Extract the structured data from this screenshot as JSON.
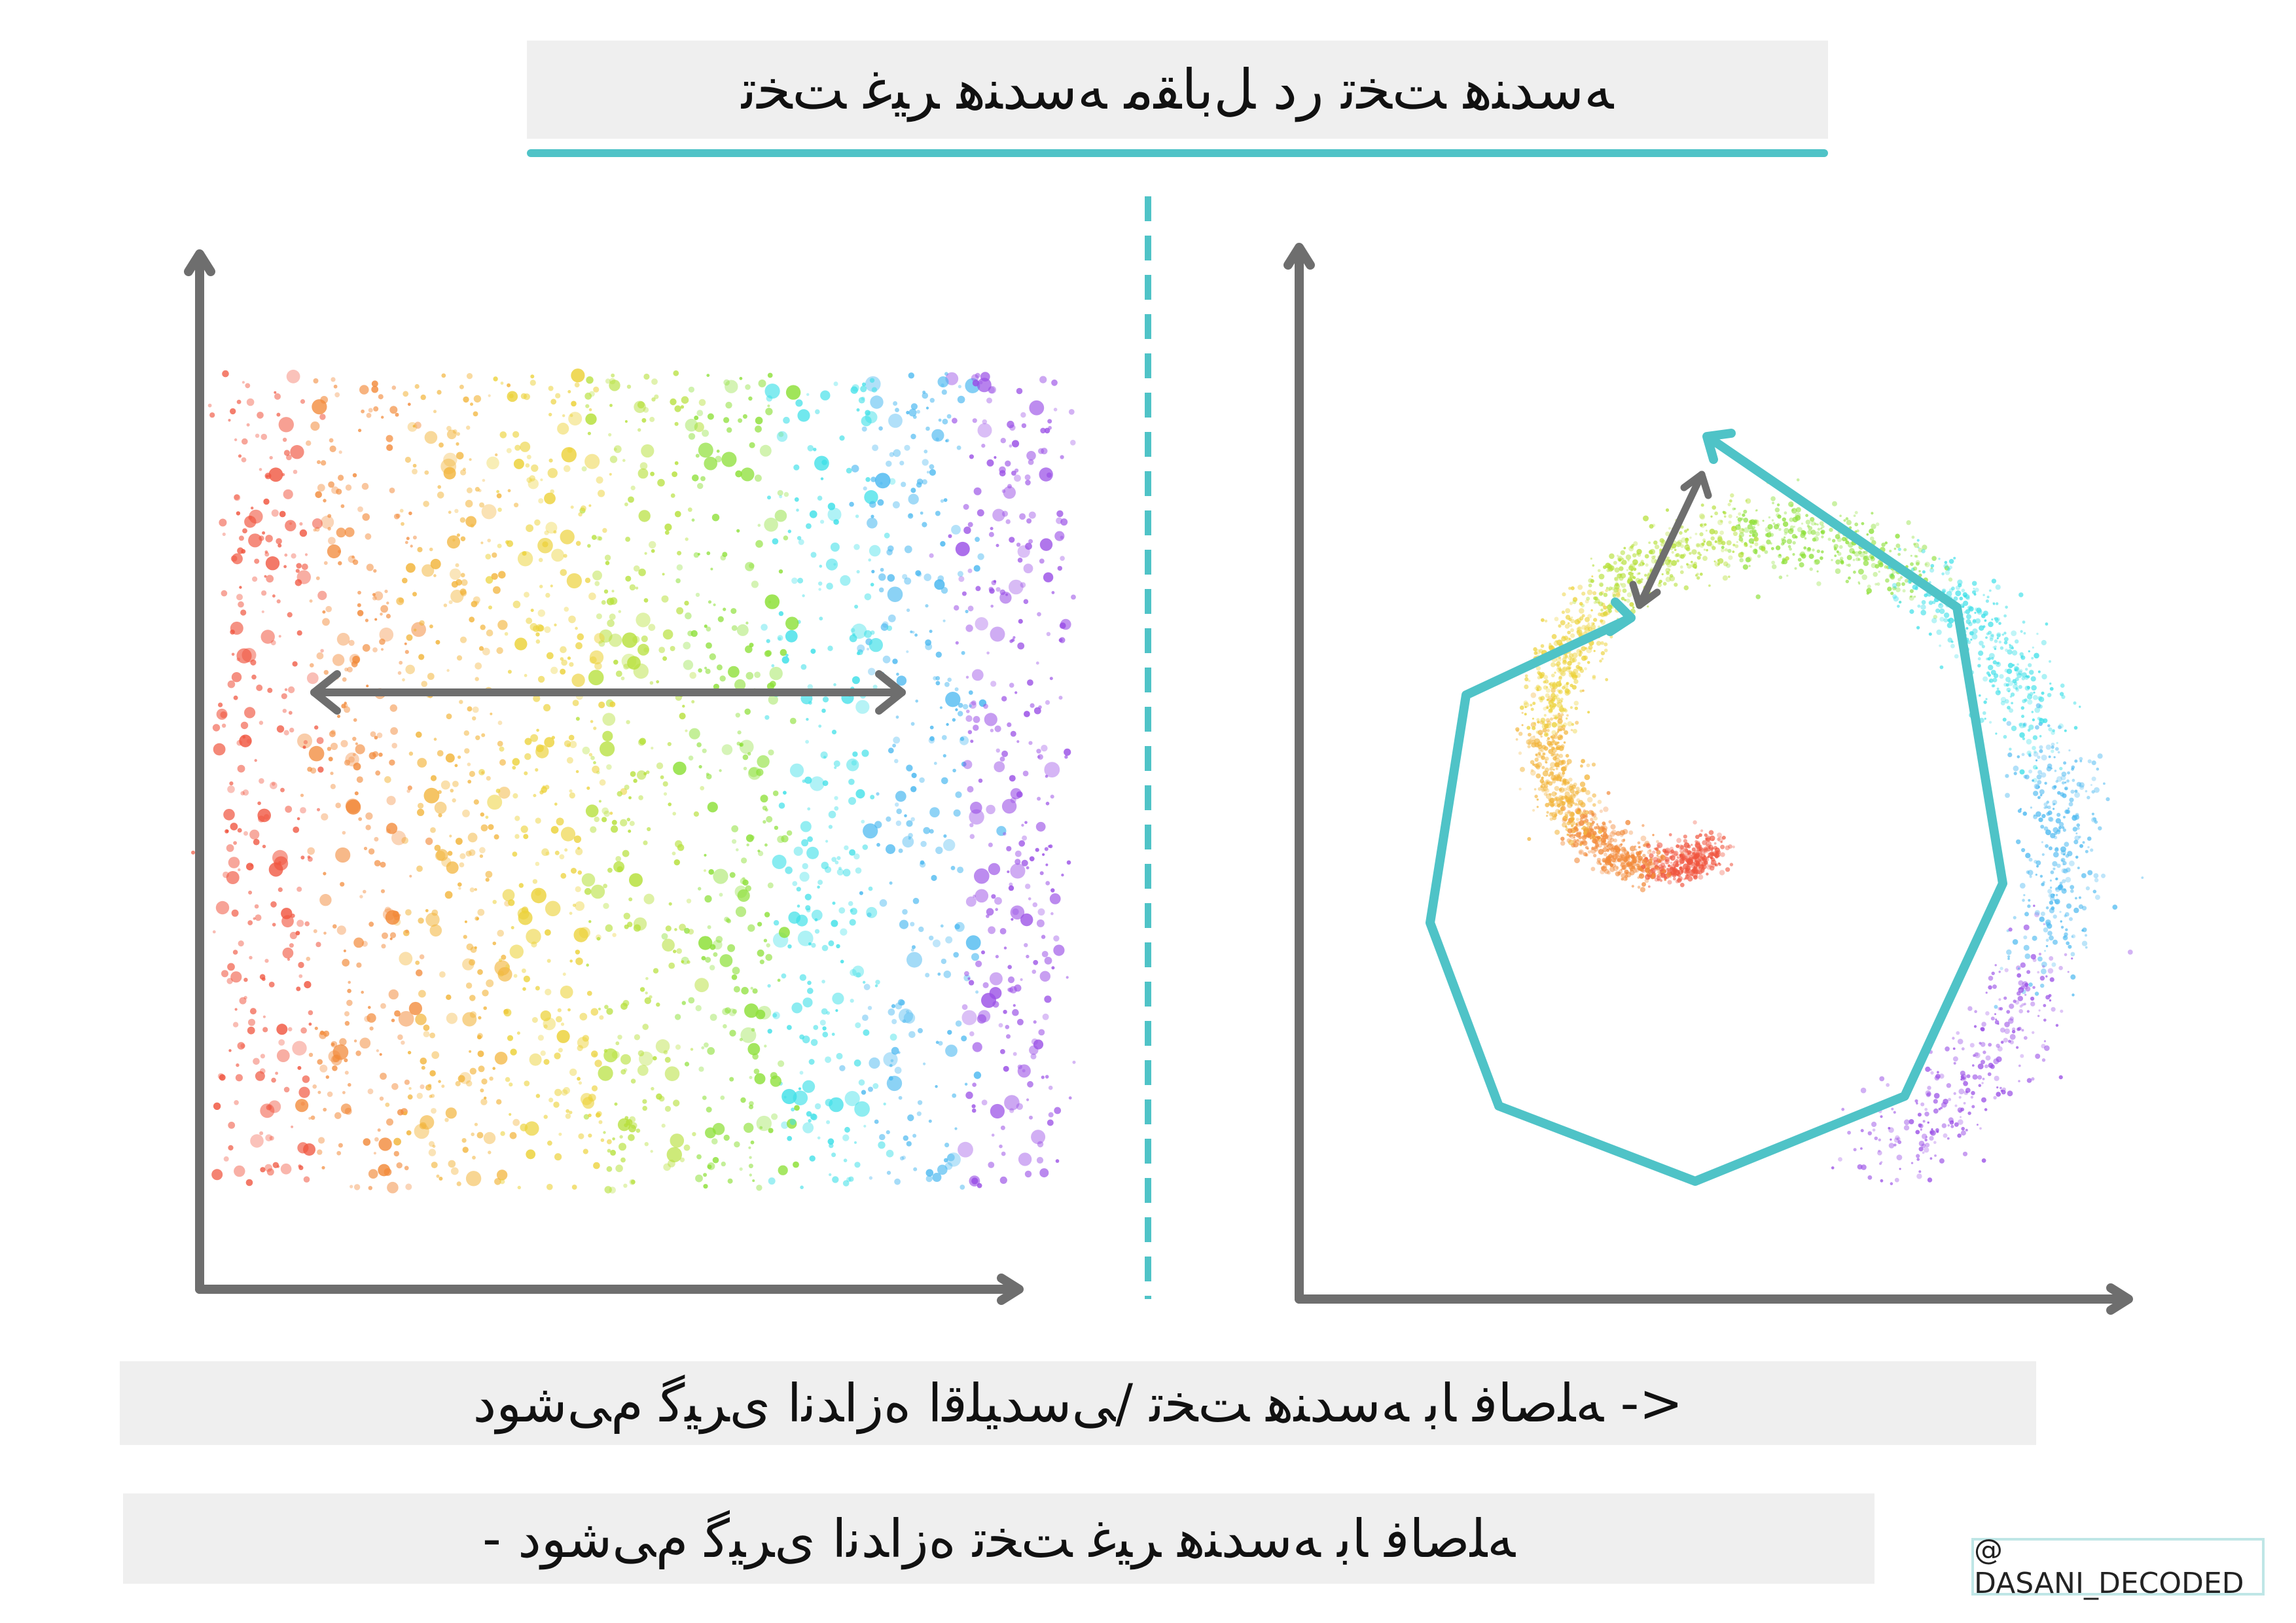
{
  "title": "ﻪﺳﺪﻨﻫ ﺖﺨﺗ ﺭﺩ ﻞﺑﺎﻘﻣ ﻪﺳﺪﻨﻫ ﺮﯿﻏ ﺖﺨﺗ",
  "caption_top": "<- ﻪﻠﺻﺎﻓ ﺎﺑ ﻪﺳﺪﻨﻫ ﺖﺨﺗ /ﯽﺳﺪﯿﻠﻗﺍ ﻩﺯﺍﺪﻧﺍ ﯼﺮﯿﮔ ﻡﯽﺷﻮﺩ",
  "caption_bottom": "ﻪﻠﺻﺎﻓ ﺎﺑ ﻪﺳﺪﻨﻫ ﺮﯿﻏ ﺖﺨﺗ ﻩﺯﺍﺪﻧﺍ ﯼﺮﯿﮔ ﻡﯽﺷﻮﺩ -",
  "credit": "@ DASANI_DECODED",
  "colors": {
    "accent": "#4fc3c7",
    "axis": "#6e6e6e",
    "banner": "#efefef",
    "spectrum": [
      "#f0553f",
      "#f28a3a",
      "#f2b43a",
      "#ecd23a",
      "#b6e03a",
      "#8ee03a",
      "#3fe0e8",
      "#4ab8f0",
      "#9a4fe6"
    ]
  },
  "icons": {
    "left_arrow": "double-headed-arrow",
    "right_arrow": "double-headed-arrow",
    "path": "polyline-path"
  }
}
